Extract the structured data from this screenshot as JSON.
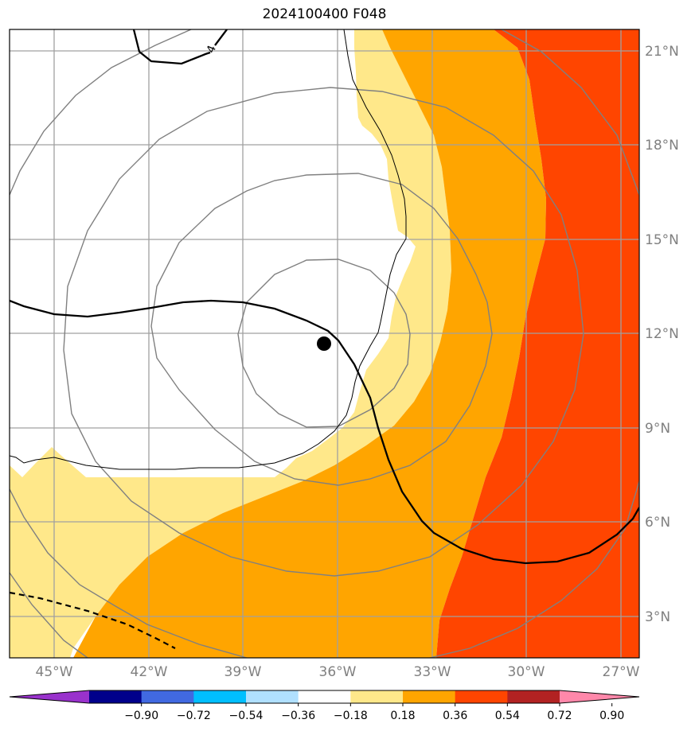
{
  "title": "2024100400 F048",
  "x_ticks": [
    "45°W",
    "42°W",
    "39°W",
    "36°W",
    "33°W",
    "30°W",
    "27°W"
  ],
  "y_ticks": [
    "21°N",
    "18°N",
    "15°N",
    "12°N",
    "9°N",
    "6°N",
    "3°N"
  ],
  "contour_label": "4",
  "colorbar": {
    "ticks": [
      "−0.90",
      "−0.72",
      "−0.54",
      "−0.36",
      "−0.18",
      "0.18",
      "0.36",
      "0.54",
      "0.72",
      "0.90"
    ],
    "colors": [
      "#9932cc",
      "#00008b",
      "#4169e1",
      "#00bfff",
      "#b0e0ff",
      "#ffffff",
      "#ffe88a",
      "#ffa500",
      "#ff4500",
      "#b22222",
      "#ff88aa"
    ]
  },
  "fill_colors": {
    "band_018_036": "#ffe88a",
    "band_036_054": "#ffa500",
    "band_054_072": "#ff4500"
  },
  "storm_marker": {
    "lon": -36.4,
    "lat": 11.6
  }
}
